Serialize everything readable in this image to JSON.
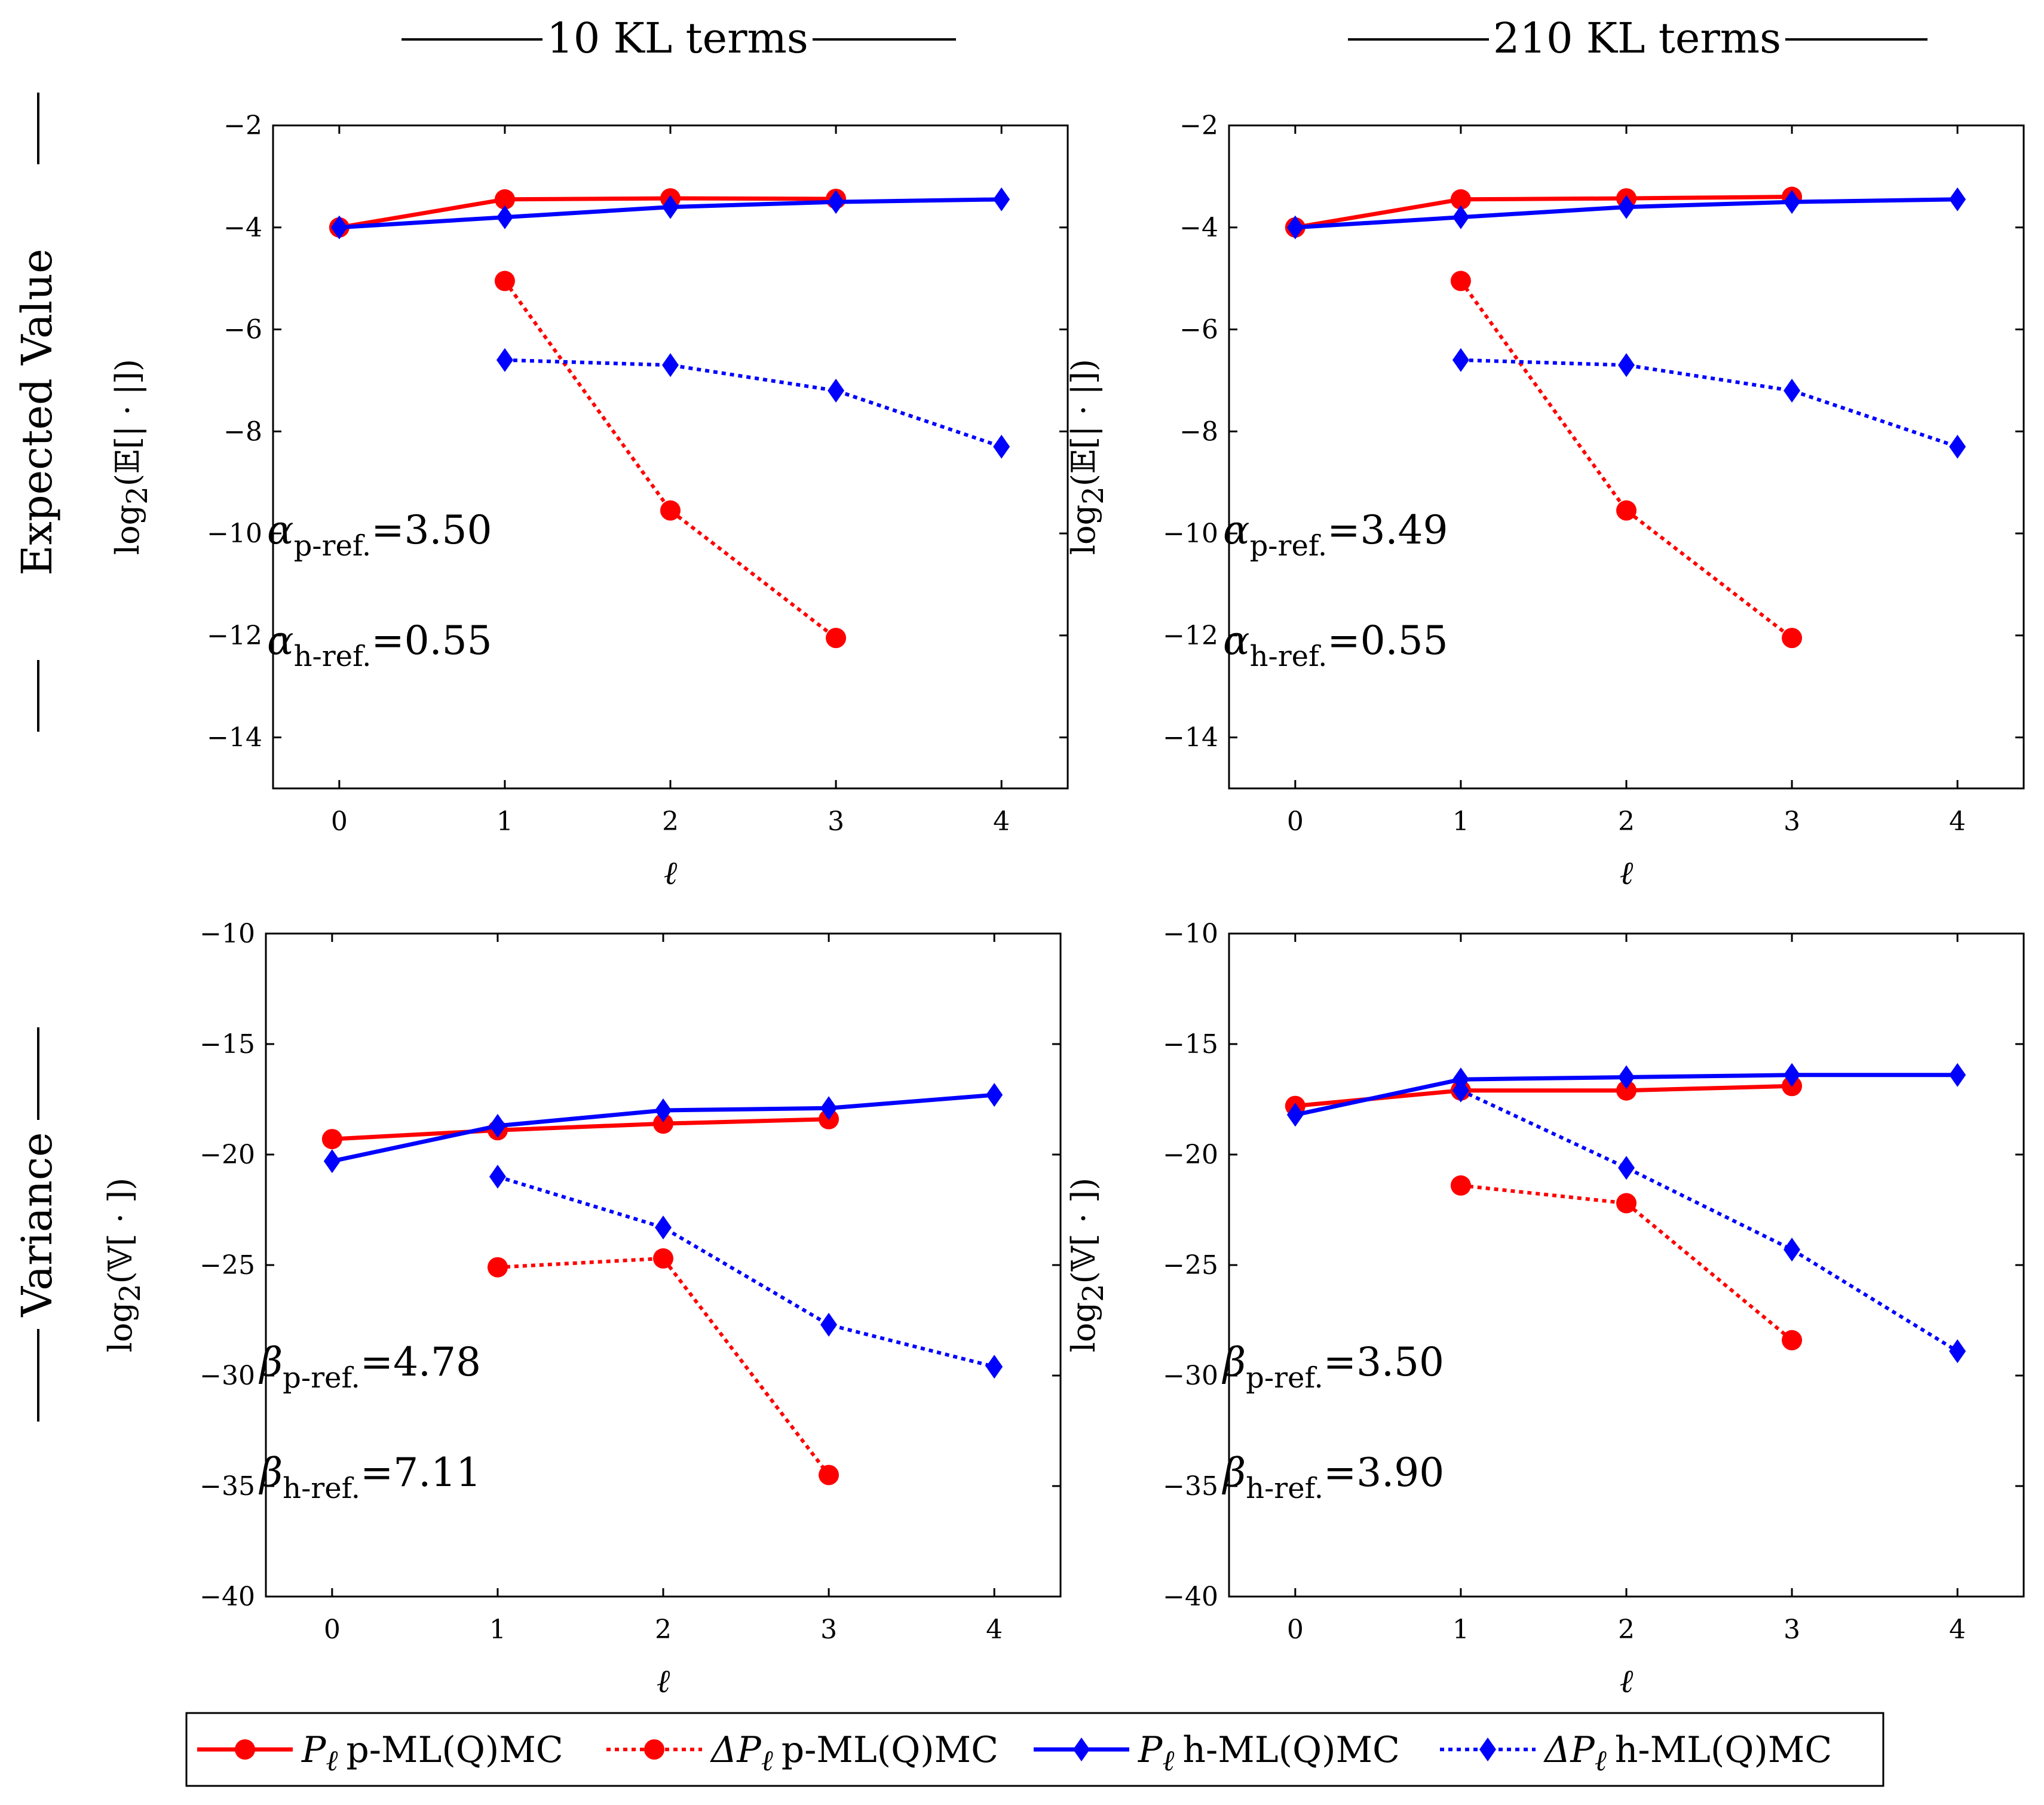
{
  "column_headers": [
    "10 KL terms",
    "210 KL terms"
  ],
  "row_headers": [
    "Expected Value",
    "Variance"
  ],
  "colors": {
    "p": "#ff0000",
    "h": "#0000ff"
  },
  "legend": {
    "entries": [
      {
        "symbol": "P",
        "subscript": "ℓ",
        "label": "p-ML(Q)MC",
        "series": "P_p"
      },
      {
        "symbol": "ΔP",
        "subscript": "ℓ",
        "label": "p-ML(Q)MC",
        "series": "dP_p"
      },
      {
        "symbol": "P",
        "subscript": "ℓ",
        "label": "h-ML(Q)MC",
        "series": "P_h"
      },
      {
        "symbol": "ΔP",
        "subscript": "ℓ",
        "label": "h-ML(Q)MC",
        "series": "dP_h"
      }
    ]
  },
  "chart_data": [
    {
      "type": "line",
      "id": "ev-10",
      "column": "10 KL terms",
      "row": "Expected Value",
      "xlabel": "ℓ",
      "ylabel": {
        "prefix": "log",
        "sub": "2",
        "suffix": "(𝔼[| · |])"
      },
      "xlim": [
        -0.4,
        4.4
      ],
      "ylim": [
        -15,
        -2
      ],
      "xticks": [
        0,
        1,
        2,
        3,
        4
      ],
      "yticks": [
        -14,
        -12,
        -10,
        -8,
        -6,
        -4,
        -2
      ],
      "series": [
        {
          "key": "P_p",
          "name": "P_ℓ p-ML(Q)MC",
          "x": [
            0,
            1,
            2,
            3
          ],
          "y": [
            -4.0,
            -3.45,
            -3.43,
            -3.44
          ]
        },
        {
          "key": "dP_p",
          "name": "ΔP_ℓ p-ML(Q)MC",
          "x": [
            1,
            2,
            3
          ],
          "y": [
            -5.05,
            -9.55,
            -12.05
          ]
        },
        {
          "key": "P_h",
          "name": "P_ℓ h-ML(Q)MC",
          "x": [
            0,
            1,
            2,
            3,
            4
          ],
          "y": [
            -4.0,
            -3.8,
            -3.6,
            -3.5,
            -3.45
          ]
        },
        {
          "key": "dP_h",
          "name": "ΔP_ℓ h-ML(Q)MC",
          "x": [
            1,
            2,
            3,
            4
          ],
          "y": [
            -6.6,
            -6.7,
            -7.2,
            -8.3
          ]
        }
      ],
      "annotations": [
        {
          "greek": "α",
          "sub": "p-ref.",
          "value": "=3.50"
        },
        {
          "greek": "α",
          "sub": "h-ref.",
          "value": "=0.55"
        }
      ]
    },
    {
      "type": "line",
      "id": "ev-210",
      "column": "210 KL terms",
      "row": "Expected Value",
      "xlabel": "ℓ",
      "ylabel": {
        "prefix": "log",
        "sub": "2",
        "suffix": "(𝔼[| · |])"
      },
      "xlim": [
        -0.4,
        4.4
      ],
      "ylim": [
        -15,
        -2
      ],
      "xticks": [
        0,
        1,
        2,
        3,
        4
      ],
      "yticks": [
        -14,
        -12,
        -10,
        -8,
        -6,
        -4,
        -2
      ],
      "series": [
        {
          "key": "P_p",
          "name": "P_ℓ p-ML(Q)MC",
          "x": [
            0,
            1,
            2,
            3
          ],
          "y": [
            -4.0,
            -3.45,
            -3.43,
            -3.4
          ]
        },
        {
          "key": "dP_p",
          "name": "ΔP_ℓ p-ML(Q)MC",
          "x": [
            1,
            2,
            3
          ],
          "y": [
            -5.05,
            -9.55,
            -12.05
          ]
        },
        {
          "key": "P_h",
          "name": "P_ℓ h-ML(Q)MC",
          "x": [
            0,
            1,
            2,
            3,
            4
          ],
          "y": [
            -4.0,
            -3.8,
            -3.6,
            -3.5,
            -3.45
          ]
        },
        {
          "key": "dP_h",
          "name": "ΔP_ℓ h-ML(Q)MC",
          "x": [
            1,
            2,
            3,
            4
          ],
          "y": [
            -6.6,
            -6.7,
            -7.2,
            -8.3
          ]
        }
      ],
      "annotations": [
        {
          "greek": "α",
          "sub": "p-ref.",
          "value": "=3.49"
        },
        {
          "greek": "α",
          "sub": "h-ref.",
          "value": "=0.55"
        }
      ]
    },
    {
      "type": "line",
      "id": "var-10",
      "column": "10 KL terms",
      "row": "Variance",
      "xlabel": "ℓ",
      "ylabel": {
        "prefix": "log",
        "sub": "2",
        "suffix": "(𝕍[ · ])"
      },
      "xlim": [
        -0.4,
        4.4
      ],
      "ylim": [
        -40,
        -10
      ],
      "xticks": [
        0,
        1,
        2,
        3,
        4
      ],
      "yticks": [
        -40,
        -35,
        -30,
        -25,
        -20,
        -15,
        -10
      ],
      "series": [
        {
          "key": "P_p",
          "name": "P_ℓ p-ML(Q)MC",
          "x": [
            0,
            1,
            2,
            3
          ],
          "y": [
            -19.3,
            -18.9,
            -18.6,
            -18.4
          ]
        },
        {
          "key": "dP_p",
          "name": "ΔP_ℓ p-ML(Q)MC",
          "x": [
            1,
            2,
            3
          ],
          "y": [
            -25.1,
            -24.7,
            -34.5
          ]
        },
        {
          "key": "P_h",
          "name": "P_ℓ h-ML(Q)MC",
          "x": [
            0,
            1,
            2,
            3,
            4
          ],
          "y": [
            -20.3,
            -18.7,
            -18.0,
            -17.9,
            -17.3
          ]
        },
        {
          "key": "dP_h",
          "name": "ΔP_ℓ h-ML(Q)MC",
          "x": [
            1,
            2,
            3,
            4
          ],
          "y": [
            -21.0,
            -23.3,
            -27.7,
            -29.6
          ]
        }
      ],
      "annotations": [
        {
          "greek": "β",
          "sub": "p-ref.",
          "value": "=4.78"
        },
        {
          "greek": "β",
          "sub": "h-ref.",
          "value": "=7.11"
        }
      ]
    },
    {
      "type": "line",
      "id": "var-210",
      "column": "210 KL terms",
      "row": "Variance",
      "xlabel": "ℓ",
      "ylabel": {
        "prefix": "log",
        "sub": "2",
        "suffix": "(𝕍[ · ])"
      },
      "xlim": [
        -0.4,
        4.4
      ],
      "ylim": [
        -40,
        -10
      ],
      "xticks": [
        0,
        1,
        2,
        3,
        4
      ],
      "yticks": [
        -40,
        -35,
        -30,
        -25,
        -20,
        -15,
        -10
      ],
      "series": [
        {
          "key": "P_p",
          "name": "P_ℓ p-ML(Q)MC",
          "x": [
            0,
            1,
            2,
            3
          ],
          "y": [
            -17.8,
            -17.1,
            -17.1,
            -16.9
          ]
        },
        {
          "key": "dP_p",
          "name": "ΔP_ℓ p-ML(Q)MC",
          "x": [
            1,
            2,
            3
          ],
          "y": [
            -21.4,
            -22.2,
            -28.4
          ]
        },
        {
          "key": "P_h",
          "name": "P_ℓ h-ML(Q)MC",
          "x": [
            0,
            1,
            2,
            3,
            4
          ],
          "y": [
            -18.2,
            -16.6,
            -16.5,
            -16.4,
            -16.4
          ]
        },
        {
          "key": "dP_h",
          "name": "ΔP_ℓ h-ML(Q)MC",
          "x": [
            1,
            2,
            3,
            4
          ],
          "y": [
            -17.1,
            -20.6,
            -24.3,
            -28.9
          ]
        }
      ],
      "annotations": [
        {
          "greek": "β",
          "sub": "p-ref.",
          "value": "=3.50"
        },
        {
          "greek": "β",
          "sub": "h-ref.",
          "value": "=3.90"
        }
      ]
    }
  ]
}
